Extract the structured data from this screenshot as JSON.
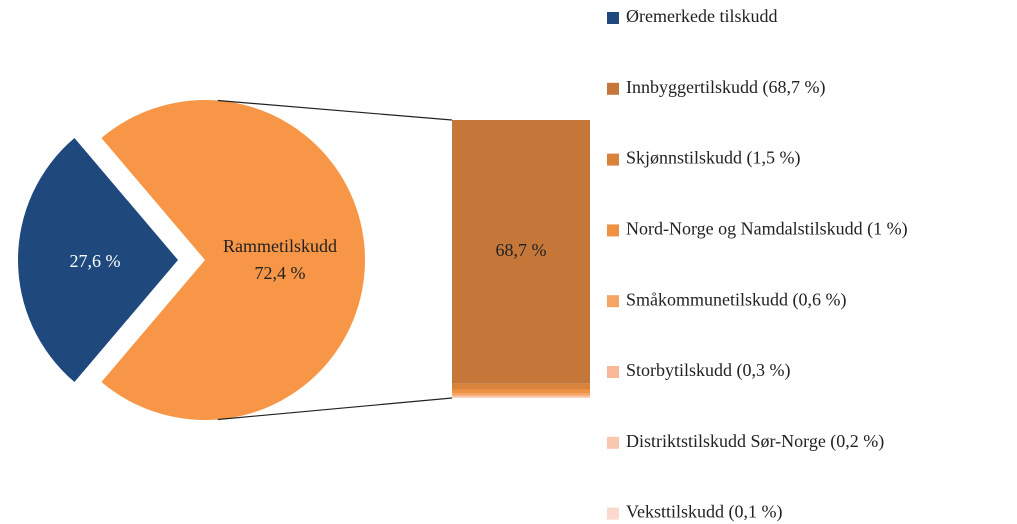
{
  "chart_data": {
    "type": "pie",
    "categories": [
      "Øremerkede tilskudd",
      "Rammetilskudd"
    ],
    "values": [
      27.6,
      72.4
    ],
    "value_labels": [
      "27,6 %",
      "72,4 %"
    ],
    "colors": [
      "#1f497d",
      "#f79646"
    ],
    "bar": {
      "type": "bar",
      "series": [
        {
          "name": "Innbyggertilskudd (68,7 %)",
          "color": "#c5773a",
          "values": [
            68.7
          ],
          "value_labels": [
            "68,7 %"
          ]
        },
        {
          "name": "Skjønnstilskudd (1,5 %)",
          "color": "#d9823c",
          "values": [
            1.5
          ]
        },
        {
          "name": "Nord-Norge og Namdalstilskudd (1 %)",
          "color": "#ef9142",
          "values": [
            1
          ]
        },
        {
          "name": "Småkommunetilskudd (0,6 %)",
          "color": "#f5a466",
          "values": [
            0.6
          ]
        },
        {
          "name": "Storbytilskudd (0,3 %)",
          "color": "#f8b898",
          "values": [
            0.3
          ]
        },
        {
          "name": "Distriktstilskudd Sør-Norge (0,2 %)",
          "color": "#f9c7b0",
          "values": [
            0.2
          ]
        },
        {
          "name": "Veksttilskudd (0,1 %)",
          "color": "#fbd9cc",
          "values": [
            0.1
          ]
        }
      ]
    }
  }
}
